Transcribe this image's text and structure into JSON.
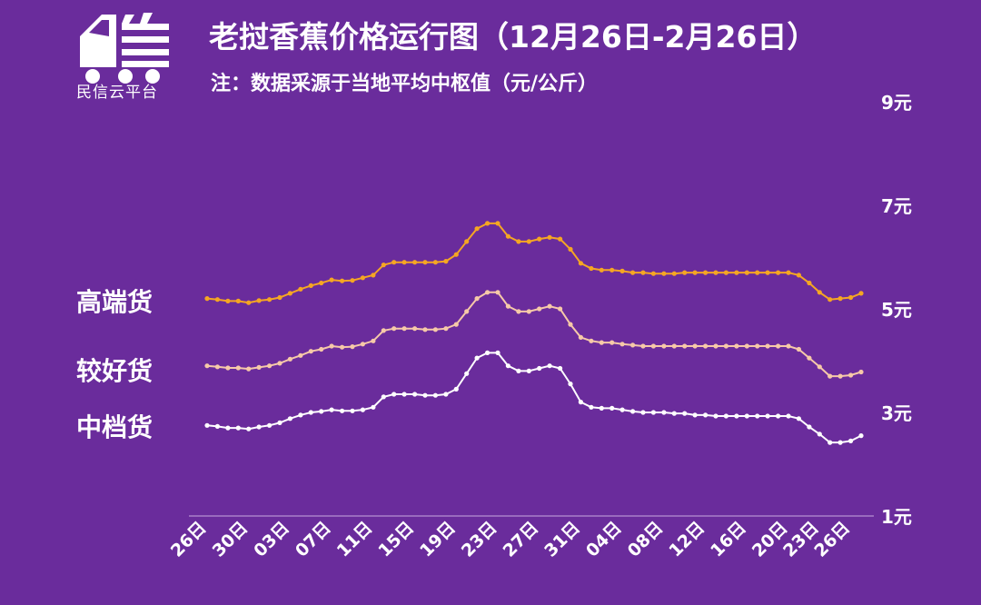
{
  "header": {
    "title": "老挝香蕉价格运行图（12月26日-2月26日）",
    "subtitle": "注：数据采源于当地平均中枢值（元/公斤）",
    "logo_text": "民信云平台",
    "logo_icon": "truck-icon"
  },
  "grade_labels": {
    "high": "高端货",
    "mid": "较好货",
    "low": "中档货"
  },
  "colors": {
    "background": "#6a2c9c",
    "high": "#f5a623",
    "mid": "#f6c9a8",
    "low": "#ffffff",
    "axis": "#c8a8e0"
  },
  "chart_data": {
    "type": "line",
    "title": "老挝香蕉价格运行图（12月26日-2月26日）",
    "ylim": [
      1,
      9
    ],
    "y_ticks": [
      1,
      3,
      5,
      7,
      9
    ],
    "y_tick_labels": [
      "1元",
      "3元",
      "5元",
      "7元",
      "9元"
    ],
    "x_ticks": [
      "26日",
      "30日",
      "03日",
      "07日",
      "11日",
      "15日",
      "19日",
      "23日",
      "27日",
      "31日",
      "04日",
      "08日",
      "12日",
      "16日",
      "20日",
      "23日",
      "26日"
    ],
    "x_tick_index": [
      0,
      4,
      8,
      12,
      16,
      20,
      24,
      28,
      32,
      36,
      40,
      44,
      48,
      52,
      56,
      59,
      62
    ],
    "series": [
      {
        "name": "高端货",
        "values": [
          5.2,
          5.18,
          5.15,
          5.15,
          5.12,
          5.16,
          5.18,
          5.22,
          5.3,
          5.38,
          5.45,
          5.5,
          5.56,
          5.54,
          5.55,
          5.6,
          5.65,
          5.85,
          5.9,
          5.9,
          5.9,
          5.9,
          5.9,
          5.92,
          6.05,
          6.3,
          6.55,
          6.65,
          6.65,
          6.4,
          6.3,
          6.3,
          6.35,
          6.38,
          6.35,
          6.15,
          5.88,
          5.78,
          5.75,
          5.75,
          5.73,
          5.7,
          5.7,
          5.68,
          5.68,
          5.68,
          5.7,
          5.7,
          5.7,
          5.7,
          5.7,
          5.7,
          5.7,
          5.7,
          5.7,
          5.7,
          5.7,
          5.65,
          5.5,
          5.32,
          5.18,
          5.2,
          5.22,
          5.3
        ]
      },
      {
        "name": "较好货",
        "values": [
          3.9,
          3.88,
          3.86,
          3.86,
          3.84,
          3.87,
          3.9,
          3.95,
          4.03,
          4.1,
          4.18,
          4.22,
          4.28,
          4.26,
          4.27,
          4.32,
          4.38,
          4.58,
          4.62,
          4.62,
          4.62,
          4.6,
          4.6,
          4.62,
          4.7,
          4.95,
          5.2,
          5.32,
          5.32,
          5.05,
          4.95,
          4.95,
          5.0,
          5.05,
          5.0,
          4.7,
          4.45,
          4.38,
          4.35,
          4.35,
          4.32,
          4.3,
          4.28,
          4.28,
          4.28,
          4.28,
          4.28,
          4.28,
          4.28,
          4.28,
          4.28,
          4.28,
          4.28,
          4.28,
          4.28,
          4.28,
          4.28,
          4.22,
          4.05,
          3.88,
          3.7,
          3.7,
          3.72,
          3.78
        ]
      },
      {
        "name": "中档货",
        "values": [
          2.75,
          2.73,
          2.7,
          2.7,
          2.68,
          2.72,
          2.75,
          2.8,
          2.88,
          2.95,
          3.0,
          3.02,
          3.05,
          3.03,
          3.03,
          3.05,
          3.1,
          3.3,
          3.35,
          3.35,
          3.35,
          3.33,
          3.33,
          3.35,
          3.45,
          3.75,
          4.05,
          4.15,
          4.15,
          3.9,
          3.8,
          3.8,
          3.85,
          3.9,
          3.85,
          3.55,
          3.2,
          3.1,
          3.08,
          3.08,
          3.05,
          3.02,
          3.0,
          3.0,
          3.0,
          2.98,
          2.98,
          2.95,
          2.95,
          2.93,
          2.93,
          2.93,
          2.93,
          2.93,
          2.93,
          2.93,
          2.93,
          2.88,
          2.72,
          2.58,
          2.42,
          2.42,
          2.45,
          2.55
        ]
      }
    ]
  }
}
